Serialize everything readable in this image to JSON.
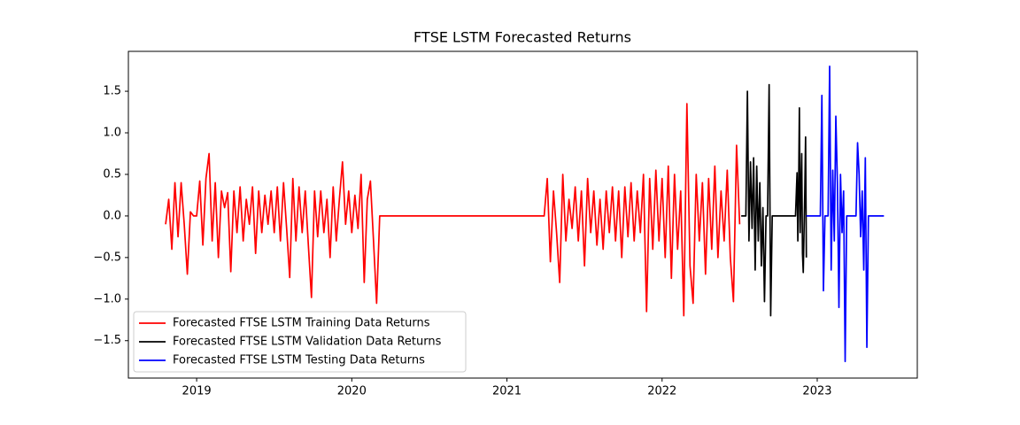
{
  "chart_data": {
    "type": "line",
    "title": "FTSE LSTM Forecasted Returns",
    "xlim": [
      2018.56,
      2023.645
    ],
    "xticks": [
      2019,
      2020,
      2021,
      2022,
      2023
    ],
    "ylim": [
      -1.95,
      1.98
    ],
    "yticks": [
      {
        "value": -1.5,
        "label": "−1.5"
      },
      {
        "value": -1.0,
        "label": "−1.0"
      },
      {
        "value": -0.5,
        "label": "−0.5"
      },
      {
        "value": 0.0,
        "label": "0.0"
      },
      {
        "value": 0.5,
        "label": "0.5"
      },
      {
        "value": 1.0,
        "label": "1.0"
      },
      {
        "value": 1.5,
        "label": "1.5"
      }
    ],
    "legend": "lower left",
    "series": [
      {
        "name": "Forecasted FTSE LSTM Training Data Returns",
        "color": "#ff0000",
        "x": [
          2018.8,
          2018.82,
          2018.84,
          2018.86,
          2018.88,
          2018.9,
          2018.92,
          2018.94,
          2018.96,
          2018.98,
          2019.0,
          2019.02,
          2019.04,
          2019.06,
          2019.08,
          2019.1,
          2019.12,
          2019.14,
          2019.16,
          2019.18,
          2019.2,
          2019.22,
          2019.24,
          2019.26,
          2019.28,
          2019.3,
          2019.32,
          2019.34,
          2019.36,
          2019.38,
          2019.4,
          2019.42,
          2019.44,
          2019.46,
          2019.48,
          2019.5,
          2019.52,
          2019.54,
          2019.56,
          2019.58,
          2019.6,
          2019.62,
          2019.64,
          2019.66,
          2019.68,
          2019.7,
          2019.72,
          2019.74,
          2019.76,
          2019.78,
          2019.8,
          2019.82,
          2019.84,
          2019.86,
          2019.88,
          2019.9,
          2019.92,
          2019.94,
          2019.96,
          2019.98,
          2020.0,
          2020.02,
          2020.04,
          2020.06,
          2020.08,
          2020.1,
          2020.12,
          2020.14,
          2020.16,
          2020.18,
          2021.24,
          2021.26,
          2021.28,
          2021.3,
          2021.32,
          2021.34,
          2021.36,
          2021.38,
          2021.4,
          2021.42,
          2021.44,
          2021.46,
          2021.48,
          2021.5,
          2021.52,
          2021.54,
          2021.56,
          2021.58,
          2021.6,
          2021.62,
          2021.64,
          2021.66,
          2021.68,
          2021.7,
          2021.72,
          2021.74,
          2021.76,
          2021.78,
          2021.8,
          2021.82,
          2021.84,
          2021.86,
          2021.88,
          2021.9,
          2021.92,
          2021.94,
          2021.96,
          2021.98,
          2022.0,
          2022.02,
          2022.04,
          2022.06,
          2022.08,
          2022.1,
          2022.12,
          2022.14,
          2022.16,
          2022.18,
          2022.2,
          2022.22,
          2022.24,
          2022.26,
          2022.28,
          2022.3,
          2022.32,
          2022.34,
          2022.36,
          2022.38,
          2022.4,
          2022.42,
          2022.44,
          2022.46,
          2022.48,
          2022.5
        ],
        "values": [
          -0.1,
          0.2,
          -0.4,
          0.4,
          -0.25,
          0.4,
          -0.1,
          -0.7,
          0.05,
          0.0,
          0.0,
          0.42,
          -0.35,
          0.45,
          0.75,
          -0.3,
          0.4,
          -0.5,
          0.3,
          0.1,
          0.28,
          -0.67,
          0.3,
          -0.2,
          0.35,
          -0.3,
          0.2,
          -0.1,
          0.35,
          -0.45,
          0.3,
          -0.2,
          0.25,
          -0.1,
          0.3,
          -0.2,
          0.35,
          -0.3,
          0.4,
          -0.15,
          -0.74,
          0.45,
          -0.3,
          0.35,
          -0.2,
          0.3,
          -0.35,
          -0.98,
          0.3,
          -0.25,
          0.3,
          -0.2,
          0.2,
          -0.5,
          0.35,
          -0.3,
          0.2,
          0.65,
          -0.1,
          0.3,
          -0.2,
          0.25,
          -0.15,
          0.5,
          -0.8,
          0.2,
          0.42,
          -0.3,
          -1.05,
          0,
          0,
          0.45,
          -0.55,
          0.3,
          -0.2,
          -0.8,
          0.5,
          -0.3,
          0.2,
          -0.15,
          0.35,
          -0.3,
          0.3,
          -0.6,
          0.45,
          -0.2,
          0.3,
          -0.35,
          0.2,
          -0.4,
          0.3,
          -0.2,
          0.35,
          -0.3,
          0.3,
          -0.5,
          0.35,
          -0.25,
          0.4,
          -0.3,
          0.3,
          -0.2,
          0.5,
          -1.15,
          0.45,
          -0.4,
          0.55,
          -0.3,
          0.45,
          -0.5,
          0.6,
          -0.75,
          0.5,
          -0.4,
          0.3,
          -1.2,
          1.35,
          -0.6,
          -1.05,
          0.5,
          -0.3,
          0.4,
          -0.7,
          0.45,
          -0.4,
          0.6,
          -0.5,
          0.3,
          -0.3,
          0.55,
          -0.5,
          -1.03,
          0.85,
          -0.1
        ]
      },
      {
        "name": "Forecasted FTSE LSTM Validation Data Returns",
        "color": "#000000",
        "x": [
          2022.51,
          2022.54,
          2022.55,
          2022.56,
          2022.57,
          2022.58,
          2022.59,
          2022.6,
          2022.61,
          2022.62,
          2022.63,
          2022.64,
          2022.65,
          2022.66,
          2022.67,
          2022.68,
          2022.69,
          2022.7,
          2022.71,
          2022.86,
          2022.87,
          2022.875,
          2022.88,
          2022.885,
          2022.89,
          2022.9,
          2022.905,
          2022.91,
          2022.92,
          2022.925,
          2022.93
        ],
        "values": [
          0,
          0,
          1.5,
          -0.3,
          0.65,
          -0.15,
          0.7,
          -0.65,
          0.6,
          -0.3,
          0.4,
          -0.6,
          0.1,
          -1.03,
          0,
          0,
          1.58,
          -1.2,
          0,
          0,
          0.52,
          -0.3,
          0.3,
          1.3,
          -0.2,
          0.75,
          -0.45,
          -0.68,
          0.3,
          0.95,
          -0.5
        ]
      },
      {
        "name": "Forecasted FTSE LSTM Testing Data Returns",
        "color": "#0000ff",
        "x": [
          2022.93,
          2023.02,
          2023.03,
          2023.04,
          2023.05,
          2023.07,
          2023.08,
          2023.09,
          2023.1,
          2023.11,
          2023.12,
          2023.13,
          2023.14,
          2023.15,
          2023.16,
          2023.17,
          2023.18,
          2023.19,
          2023.25,
          2023.26,
          2023.27,
          2023.28,
          2023.29,
          2023.3,
          2023.31,
          2023.32,
          2023.33,
          2023.43
        ],
        "values": [
          0,
          0,
          1.45,
          -0.9,
          0,
          0,
          1.8,
          -0.65,
          0.55,
          -0.3,
          1.2,
          0.4,
          -1.1,
          0.5,
          -0.2,
          0.3,
          -1.75,
          0,
          0,
          0.88,
          0.5,
          -0.25,
          0.3,
          -0.65,
          0.7,
          -1.58,
          0,
          0
        ]
      }
    ]
  }
}
